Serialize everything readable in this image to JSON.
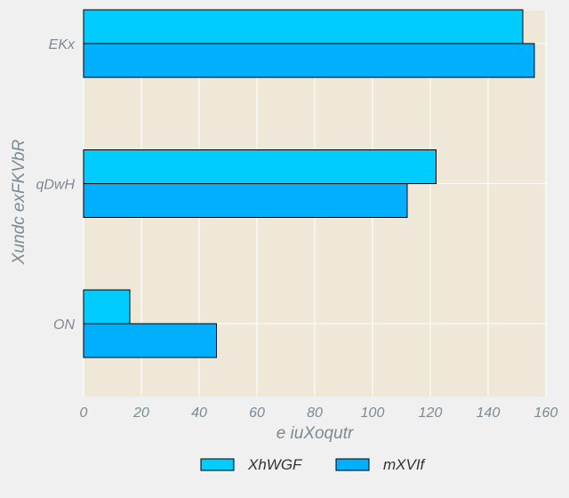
{
  "chart_data": {
    "type": "bar",
    "orientation": "horizontal",
    "categories": [
      "EKx",
      "qDwH",
      "ON"
    ],
    "series": [
      {
        "name": "XhWGF",
        "values": [
          152,
          122,
          16
        ],
        "color": "#00ccff"
      },
      {
        "name": "mXVIf",
        "values": [
          156,
          112,
          46
        ],
        "color": "#00b0ff"
      }
    ],
    "xlabel": "e iuXoqutr",
    "ylabel": "Xundc exFKVbR",
    "xlim": [
      0,
      160
    ],
    "xticks": [
      0,
      20,
      40,
      60,
      80,
      100,
      120,
      140,
      160
    ],
    "grid": true,
    "legend_position": "bottom",
    "plot_background": "#efe8d8",
    "figure_background": "#f0f0f0",
    "grid_color": "#ffffff",
    "text_color": "#7b8a93"
  }
}
